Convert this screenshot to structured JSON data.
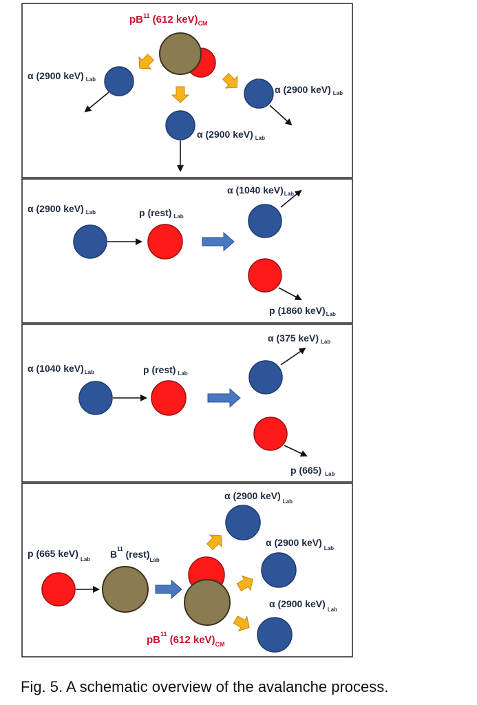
{
  "colors": {
    "alpha": "#2e5597",
    "proton": "#ff1a1a",
    "boron": "#8a7b50",
    "momentum_arrow": "#f6b21b",
    "process_arrow": "#4a78c0",
    "highlight_text": "#c8102e"
  },
  "panel1": {
    "pb_main": "pB",
    "pb_sup": "11",
    "pb_energy": " (612 keV)",
    "pb_frame": "CM",
    "alpha_left_main": "α (2900 keV)",
    "alpha_left_frame": "Lab",
    "alpha_right_main": "α (2900 keV)",
    "alpha_right_frame": "Lab",
    "alpha_down_main": "α (2900 keV)",
    "alpha_down_frame": "Lab"
  },
  "panel2": {
    "alpha_in_main": "α (2900 keV)",
    "alpha_in_frame": "Lab",
    "p_rest_main": "p (rest)",
    "p_rest_frame": "Lab",
    "alpha_out_main": "α (1040 keV)",
    "alpha_out_frame": "Lab",
    "p_out_main": "p (1860 keV)",
    "p_out_frame": "Lab"
  },
  "panel3": {
    "alpha_in_main": "α (1040 keV)",
    "alpha_in_frame": "Lab",
    "p_rest_main": "p (rest)",
    "p_rest_frame": "Lab",
    "alpha_out_main": "α (375 keV)",
    "alpha_out_frame": "Lab",
    "p_out_main": "p (665)",
    "p_out_frame": "Lab"
  },
  "panel4": {
    "p_in_main": "p (665 keV)",
    "p_in_frame": "Lab",
    "b_main": "B",
    "b_sup": "11",
    "b_rest": " (rest)",
    "b_frame": "Lab",
    "alpha_top_main": "α (2900 keV)",
    "alpha_top_frame": "Lab",
    "alpha_mid_main": "α (2900 keV)",
    "alpha_mid_frame": "Lab",
    "alpha_low_main": "α (2900 keV)",
    "alpha_low_frame": "Lab",
    "pb_main": "pB",
    "pb_sup": "11",
    "pb_energy": " (612 keV)",
    "pb_frame": "CM"
  },
  "caption": "Fig. 5.  A schematic overview of the avalanche process."
}
